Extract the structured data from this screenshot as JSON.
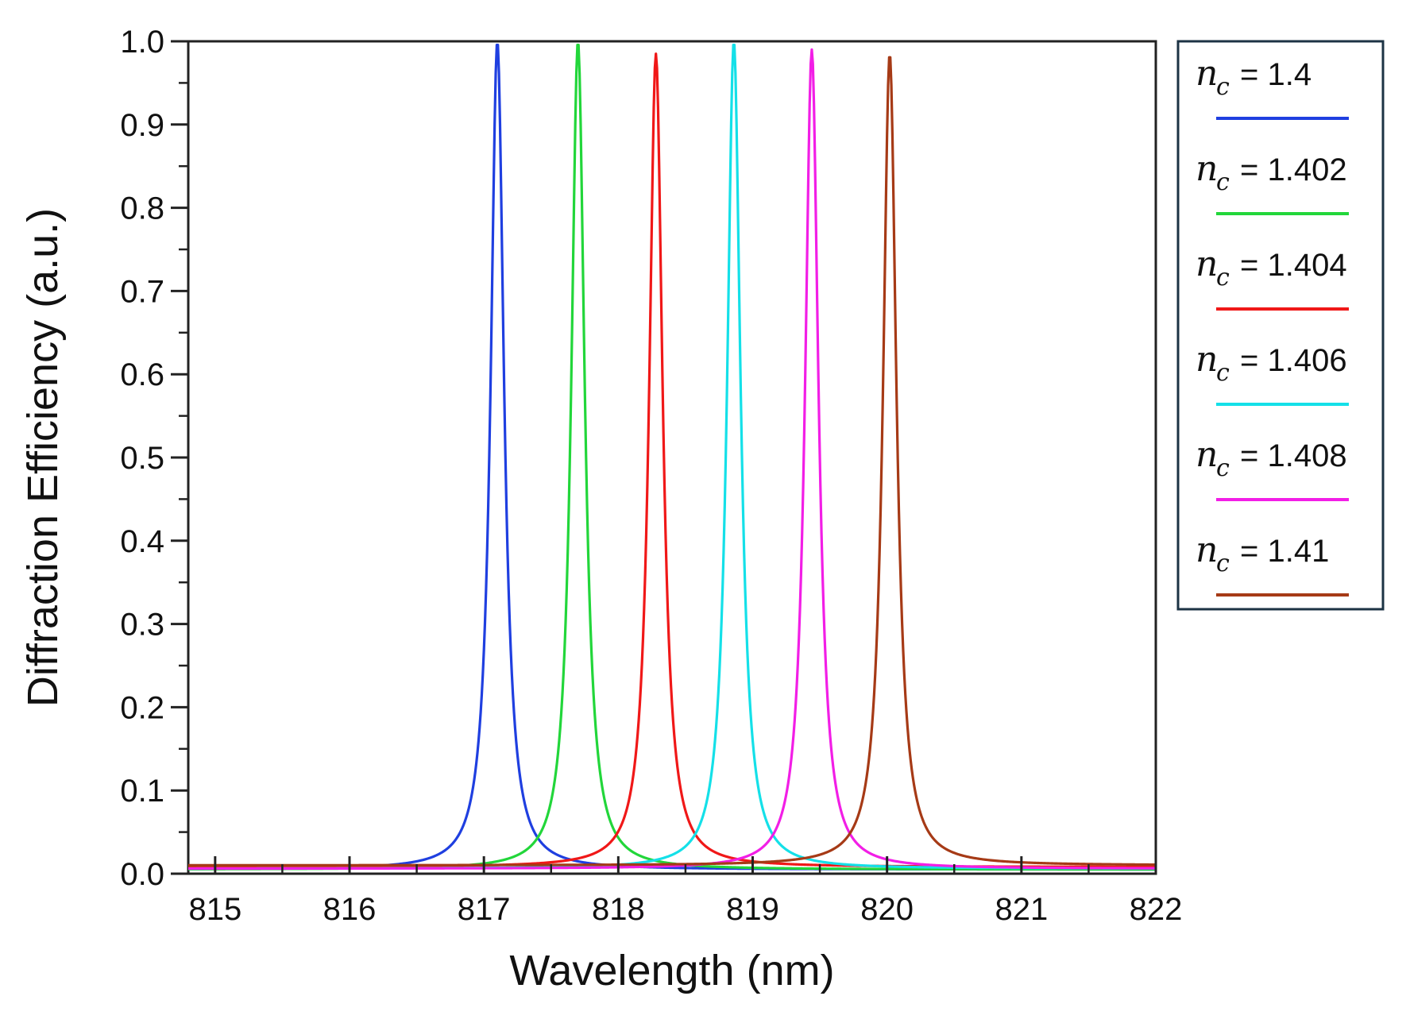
{
  "chart_data": {
    "type": "line",
    "title": "",
    "xlabel": "Wavelength (nm)",
    "ylabel": "Diffraction Efficiency (a.u.)",
    "xlim": [
      814.8,
      822
    ],
    "ylim": [
      0,
      1.0
    ],
    "x_ticks": [
      815,
      816,
      817,
      818,
      819,
      820,
      821,
      822
    ],
    "y_ticks": [
      0.0,
      0.1,
      0.2,
      0.3,
      0.4,
      0.5,
      0.6,
      0.7,
      0.8,
      0.9,
      1.0
    ],
    "x_tick_labels": [
      "815",
      "816",
      "817",
      "818",
      "819",
      "820",
      "821",
      "822"
    ],
    "y_tick_labels": [
      "0.0",
      "0.1",
      "0.2",
      "0.3",
      "0.4",
      "0.5",
      "0.6",
      "0.7",
      "0.8",
      "0.9",
      "1.0"
    ],
    "grid": false,
    "legend_position": "right",
    "legend_symbol": "n",
    "legend_subscript": "c",
    "series": [
      {
        "name": "n_c = 1.4",
        "label_value": "= 1.4",
        "color": "#1f3fe0",
        "peak_x": 817.1,
        "peak_y": 1.0,
        "halfwidth": 0.06,
        "baseline": 0.005
      },
      {
        "name": "n_c = 1.402",
        "label_value": "= 1.402",
        "color": "#22d63a",
        "peak_x": 817.7,
        "peak_y": 1.0,
        "halfwidth": 0.06,
        "baseline": 0.005
      },
      {
        "name": "n_c = 1.404",
        "label_value": "= 1.404",
        "color": "#f01818",
        "peak_x": 818.28,
        "peak_y": 0.985,
        "halfwidth": 0.06,
        "baseline": 0.008
      },
      {
        "name": "n_c = 1.406",
        "label_value": "= 1.406",
        "color": "#14e0e8",
        "peak_x": 818.86,
        "peak_y": 1.0,
        "halfwidth": 0.06,
        "baseline": 0.006
      },
      {
        "name": "n_c = 1.408",
        "label_value": "= 1.408",
        "color": "#f21ee6",
        "peak_x": 819.44,
        "peak_y": 0.99,
        "halfwidth": 0.06,
        "baseline": 0.006
      },
      {
        "name": "n_c = 1.41",
        "label_value": "= 1.41",
        "color": "#a63a16",
        "peak_x": 820.02,
        "peak_y": 0.985,
        "halfwidth": 0.06,
        "baseline": 0.01
      }
    ]
  }
}
